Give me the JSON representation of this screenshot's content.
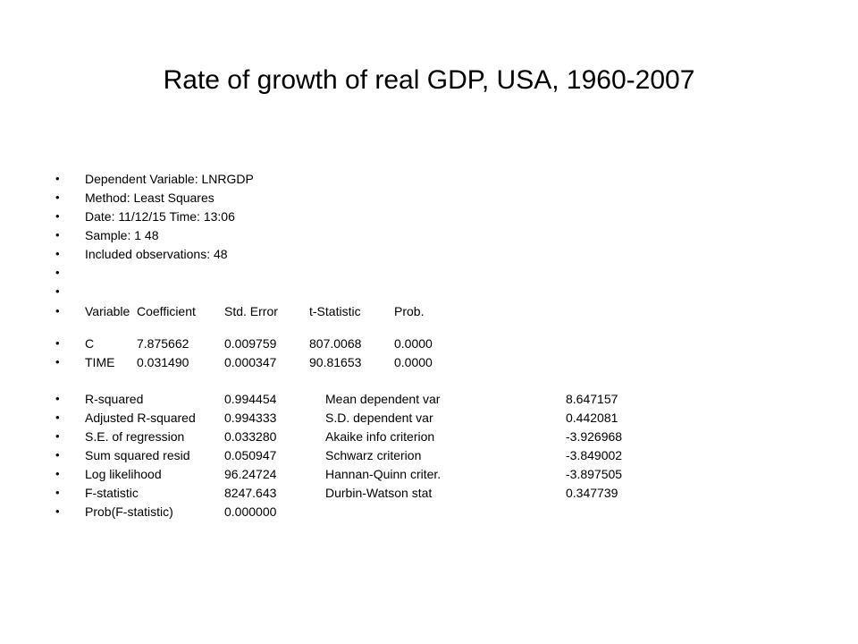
{
  "slide": {
    "title": "Rate of growth of real GDP, USA, 1960-2007"
  },
  "bullet_glyph": "•",
  "header_lines": [
    "Dependent Variable: LNRGDP",
    "Method: Least Squares",
    "Date: 11/12/15   Time: 13:06",
    "Sample: 1 48",
    "Included observations: 48",
    "",
    ""
  ],
  "coefficient_table": {
    "headers": [
      "Variable",
      "Coefficient",
      "Std. Error",
      "t-Statistic",
      "Prob."
    ],
    "rows": [
      [
        "C",
        "7.875662",
        "0.009759",
        "807.0068",
        "0.0000"
      ],
      [
        "TIME",
        "0.031490",
        "0.000347",
        "90.81653",
        "0.0000"
      ]
    ]
  },
  "summary_stats": [
    [
      "R-squared",
      "0.994454",
      "Mean dependent var",
      "8.647157"
    ],
    [
      "Adjusted R-squared",
      "0.994333",
      "S.D. dependent var",
      "0.442081"
    ],
    [
      "S.E. of regression",
      "0.033280",
      "Akaike info criterion",
      "-3.926968"
    ],
    [
      "Sum squared resid",
      "0.050947",
      "Schwarz criterion",
      "-3.849002"
    ],
    [
      "Log likelihood",
      "96.24724",
      "Hannan-Quinn criter.",
      "-3.897505"
    ],
    [
      "F-statistic",
      "8247.643",
      "Durbin-Watson stat",
      "0.347739"
    ],
    [
      "Prob(F-statistic)",
      "0.000000",
      "",
      ""
    ]
  ]
}
